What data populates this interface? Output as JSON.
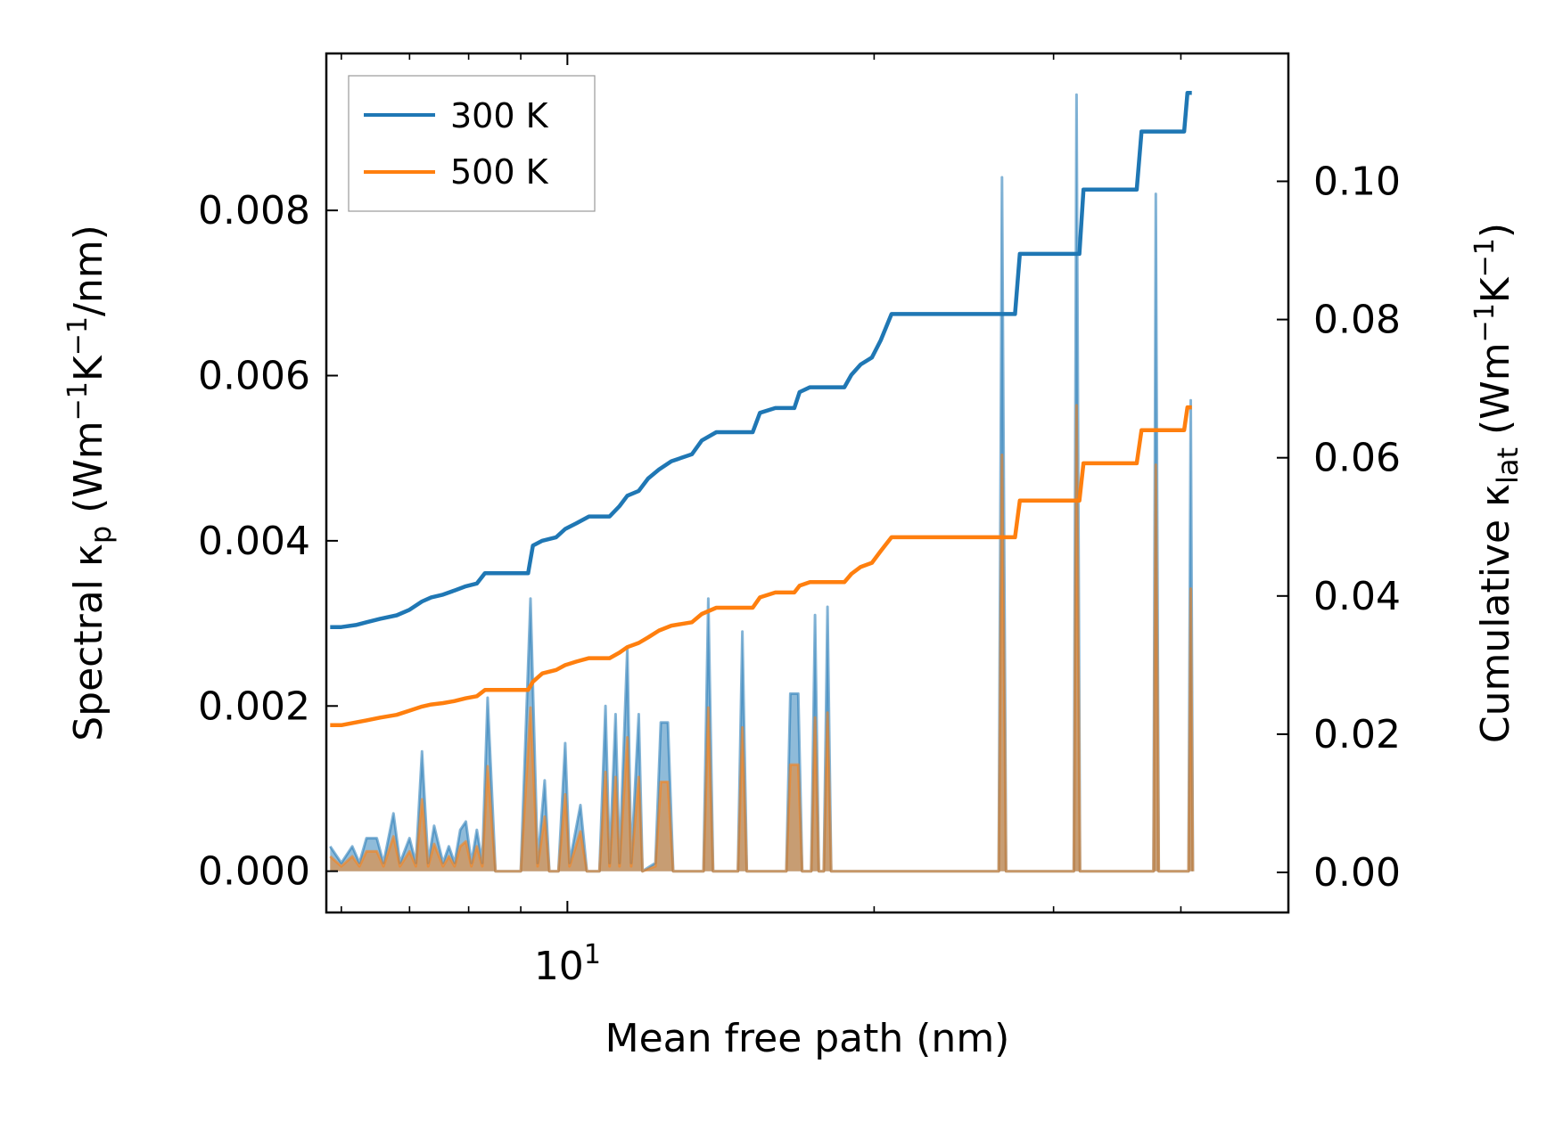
{
  "chart_data": {
    "type": "line",
    "title": "",
    "xlabel": "Mean free path (nm)",
    "xscale": "log",
    "xlim": [
      5.8,
      51.0
    ],
    "x_ticks": [
      {
        "value": 10,
        "base": "10",
        "exp": "1"
      }
    ],
    "x_minor_ticks": [
      6,
      7,
      8,
      9,
      20,
      30,
      40
    ],
    "left_axis": {
      "label_main": "Spectral κ",
      "label_sub": "p",
      "label_units_prefix": " (Wm",
      "label_units_exp1": "−1",
      "label_units_mid": "K",
      "label_units_exp2": "−1",
      "label_units_suffix": "/nm)",
      "ylim": [
        -0.0005,
        0.0099
      ],
      "ticks": [
        0.0,
        0.002,
        0.004,
        0.006,
        0.008
      ],
      "tick_labels": [
        "0.000",
        "0.002",
        "0.004",
        "0.006",
        "0.008"
      ]
    },
    "right_axis": {
      "label_main": "Cumulative κ",
      "label_sub": "lat",
      "label_units_prefix": " (Wm",
      "label_units_exp1": "−1",
      "label_units_mid": "K",
      "label_units_exp2": "−1",
      "label_units_suffix": ")",
      "ylim": [
        -0.0058,
        0.1185
      ],
      "ticks": [
        0.0,
        0.02,
        0.04,
        0.06,
        0.08,
        0.1
      ],
      "tick_labels": [
        "0.00",
        "0.02",
        "0.04",
        "0.06",
        "0.08",
        "0.10"
      ]
    },
    "legend": {
      "placement": "top-left",
      "entries": [
        "300 K",
        "500 K"
      ]
    },
    "colors": {
      "300 K": "#1f77b4",
      "500 K": "#ff7f0e",
      "fill_300": "#1f77b4",
      "fill_500": "#ff7f0e"
    },
    "cumulative_series": [
      {
        "name": "300 K",
        "axis": "right",
        "points": [
          [
            5.85,
            0.0355
          ],
          [
            6.0,
            0.0355
          ],
          [
            6.2,
            0.0358
          ],
          [
            6.35,
            0.0362
          ],
          [
            6.55,
            0.0367
          ],
          [
            6.8,
            0.0372
          ],
          [
            7.0,
            0.038
          ],
          [
            7.2,
            0.0392
          ],
          [
            7.35,
            0.0398
          ],
          [
            7.55,
            0.0402
          ],
          [
            7.75,
            0.0408
          ],
          [
            7.95,
            0.0414
          ],
          [
            8.15,
            0.0418
          ],
          [
            8.3,
            0.0433
          ],
          [
            9.15,
            0.0433
          ],
          [
            9.25,
            0.0473
          ],
          [
            9.45,
            0.048
          ],
          [
            9.75,
            0.0485
          ],
          [
            9.95,
            0.0497
          ],
          [
            10.2,
            0.0505
          ],
          [
            10.5,
            0.0515
          ],
          [
            11.0,
            0.0515
          ],
          [
            11.25,
            0.053
          ],
          [
            11.45,
            0.0545
          ],
          [
            11.75,
            0.0552
          ],
          [
            12.0,
            0.057
          ],
          [
            12.3,
            0.0583
          ],
          [
            12.65,
            0.0595
          ],
          [
            13.25,
            0.0605
          ],
          [
            13.55,
            0.0625
          ],
          [
            14.0,
            0.0637
          ],
          [
            15.2,
            0.0637
          ],
          [
            15.45,
            0.0665
          ],
          [
            16.0,
            0.0672
          ],
          [
            16.7,
            0.0672
          ],
          [
            16.9,
            0.0695
          ],
          [
            17.3,
            0.0702
          ],
          [
            18.7,
            0.0702
          ],
          [
            19.0,
            0.072
          ],
          [
            19.4,
            0.0735
          ],
          [
            19.9,
            0.0745
          ],
          [
            20.3,
            0.077
          ],
          [
            20.8,
            0.0808
          ],
          [
            27.5,
            0.0808
          ],
          [
            27.8,
            0.0895
          ],
          [
            31.8,
            0.0895
          ],
          [
            32.1,
            0.0988
          ],
          [
            36.2,
            0.0988
          ],
          [
            36.6,
            0.1072
          ],
          [
            40.3,
            0.1072
          ],
          [
            40.6,
            0.1128
          ],
          [
            41.0,
            0.1128
          ]
        ]
      },
      {
        "name": "500 K",
        "axis": "right",
        "points": [
          [
            5.85,
            0.0213
          ],
          [
            6.0,
            0.0213
          ],
          [
            6.2,
            0.0217
          ],
          [
            6.35,
            0.022
          ],
          [
            6.55,
            0.0224
          ],
          [
            6.8,
            0.0228
          ],
          [
            7.0,
            0.0234
          ],
          [
            7.2,
            0.024
          ],
          [
            7.35,
            0.0243
          ],
          [
            7.55,
            0.0245
          ],
          [
            7.75,
            0.0248
          ],
          [
            7.95,
            0.0252
          ],
          [
            8.15,
            0.0255
          ],
          [
            8.3,
            0.0264
          ],
          [
            9.15,
            0.0264
          ],
          [
            9.25,
            0.0276
          ],
          [
            9.45,
            0.0288
          ],
          [
            9.75,
            0.0293
          ],
          [
            9.95,
            0.03
          ],
          [
            10.2,
            0.0305
          ],
          [
            10.5,
            0.031
          ],
          [
            11.0,
            0.031
          ],
          [
            11.25,
            0.0318
          ],
          [
            11.45,
            0.0326
          ],
          [
            11.75,
            0.0332
          ],
          [
            12.0,
            0.034
          ],
          [
            12.3,
            0.035
          ],
          [
            12.65,
            0.0357
          ],
          [
            13.25,
            0.0362
          ],
          [
            13.55,
            0.0374
          ],
          [
            14.0,
            0.0383
          ],
          [
            15.2,
            0.0383
          ],
          [
            15.45,
            0.0398
          ],
          [
            16.0,
            0.0405
          ],
          [
            16.7,
            0.0405
          ],
          [
            16.9,
            0.0415
          ],
          [
            17.3,
            0.042
          ],
          [
            18.7,
            0.042
          ],
          [
            19.0,
            0.0432
          ],
          [
            19.4,
            0.0442
          ],
          [
            19.9,
            0.0448
          ],
          [
            20.3,
            0.0465
          ],
          [
            20.8,
            0.0485
          ],
          [
            27.5,
            0.0485
          ],
          [
            27.8,
            0.0538
          ],
          [
            31.8,
            0.0538
          ],
          [
            32.1,
            0.0592
          ],
          [
            36.2,
            0.0592
          ],
          [
            36.6,
            0.064
          ],
          [
            40.3,
            0.064
          ],
          [
            40.6,
            0.0673
          ],
          [
            41.0,
            0.0673
          ]
        ]
      }
    ],
    "spectral_series": [
      {
        "name": "300 K",
        "axis": "left",
        "points": [
          [
            5.85,
            0.0003
          ],
          [
            6.0,
            0.0001
          ],
          [
            6.15,
            0.0003
          ],
          [
            6.25,
            0.0001
          ],
          [
            6.35,
            0.0004
          ],
          [
            6.5,
            0.0004
          ],
          [
            6.6,
            0.0001
          ],
          [
            6.75,
            0.0007
          ],
          [
            6.85,
            0.0001
          ],
          [
            7.0,
            0.0004
          ],
          [
            7.1,
            0.0001
          ],
          [
            7.2,
            0.00145
          ],
          [
            7.3,
            0.0001
          ],
          [
            7.4,
            0.00055
          ],
          [
            7.55,
            0.0001
          ],
          [
            7.65,
            0.0003
          ],
          [
            7.75,
            0.0001
          ],
          [
            7.85,
            0.0005
          ],
          [
            7.95,
            0.0006
          ],
          [
            8.05,
            0.0001
          ],
          [
            8.15,
            0.0005
          ],
          [
            8.25,
            0.0001
          ],
          [
            8.35,
            0.0021
          ],
          [
            8.5,
            0.0
          ],
          [
            9.0,
            0.0
          ],
          [
            9.2,
            0.0033
          ],
          [
            9.35,
            0.0001
          ],
          [
            9.5,
            0.0011
          ],
          [
            9.6,
            0.0
          ],
          [
            9.8,
            0.0
          ],
          [
            9.95,
            0.00155
          ],
          [
            10.05,
            0.0001
          ],
          [
            10.3,
            0.0008
          ],
          [
            10.45,
            0.0
          ],
          [
            10.75,
            0.0
          ],
          [
            10.9,
            0.002
          ],
          [
            11.0,
            0.0001
          ],
          [
            11.15,
            0.0019
          ],
          [
            11.25,
            0.0001
          ],
          [
            11.45,
            0.0027
          ],
          [
            11.55,
            0.0001
          ],
          [
            11.75,
            0.0019
          ],
          [
            11.85,
            0.0
          ],
          [
            12.2,
            0.0001
          ],
          [
            12.35,
            0.0018
          ],
          [
            12.55,
            0.0018
          ],
          [
            12.7,
            0.0
          ],
          [
            13.6,
            0.0
          ],
          [
            13.75,
            0.0033
          ],
          [
            13.9,
            0.0
          ],
          [
            14.7,
            0.0
          ],
          [
            14.85,
            0.0029
          ],
          [
            15.0,
            0.0
          ],
          [
            16.4,
            0.0
          ],
          [
            16.55,
            0.00215
          ],
          [
            16.85,
            0.00215
          ],
          [
            17.0,
            0.0
          ],
          [
            17.35,
            0.0
          ],
          [
            17.5,
            0.0031
          ],
          [
            17.65,
            0.0
          ],
          [
            17.85,
            0.0
          ],
          [
            18.0,
            0.0032
          ],
          [
            18.15,
            0.0
          ],
          [
            26.5,
            0.0
          ],
          [
            26.7,
            0.0084
          ],
          [
            26.95,
            0.0
          ],
          [
            31.4,
            0.0
          ],
          [
            31.6,
            0.0094
          ],
          [
            31.85,
            0.0
          ],
          [
            37.6,
            0.0
          ],
          [
            37.8,
            0.0082
          ],
          [
            38.05,
            0.0
          ],
          [
            40.7,
            0.0
          ],
          [
            40.9,
            0.0057
          ],
          [
            41.1,
            0.0
          ]
        ]
      },
      {
        "name": "500 K",
        "axis": "left",
        "points": [
          [
            5.85,
            0.00018
          ],
          [
            6.0,
            6e-05
          ],
          [
            6.15,
            0.00018
          ],
          [
            6.25,
            6e-05
          ],
          [
            6.35,
            0.00024
          ],
          [
            6.5,
            0.00024
          ],
          [
            6.6,
            6e-05
          ],
          [
            6.75,
            0.00042
          ],
          [
            6.85,
            6e-05
          ],
          [
            7.0,
            0.00024
          ],
          [
            7.1,
            6e-05
          ],
          [
            7.2,
            0.00087
          ],
          [
            7.3,
            6e-05
          ],
          [
            7.4,
            0.00033
          ],
          [
            7.55,
            6e-05
          ],
          [
            7.65,
            0.00018
          ],
          [
            7.75,
            6e-05
          ],
          [
            7.85,
            0.0003
          ],
          [
            7.95,
            0.00036
          ],
          [
            8.05,
            6e-05
          ],
          [
            8.15,
            0.0003
          ],
          [
            8.25,
            6e-05
          ],
          [
            8.35,
            0.00127
          ],
          [
            8.5,
            0.0
          ],
          [
            9.0,
            0.0
          ],
          [
            9.2,
            0.00198
          ],
          [
            9.35,
            6e-05
          ],
          [
            9.5,
            0.00066
          ],
          [
            9.6,
            0.0
          ],
          [
            9.8,
            0.0
          ],
          [
            9.95,
            0.00093
          ],
          [
            10.05,
            6e-05
          ],
          [
            10.3,
            0.00048
          ],
          [
            10.45,
            0.0
          ],
          [
            10.75,
            0.0
          ],
          [
            10.9,
            0.0012
          ],
          [
            11.0,
            6e-05
          ],
          [
            11.15,
            0.00114
          ],
          [
            11.25,
            6e-05
          ],
          [
            11.45,
            0.00162
          ],
          [
            11.55,
            6e-05
          ],
          [
            11.75,
            0.00114
          ],
          [
            11.85,
            0.0
          ],
          [
            12.2,
            6e-05
          ],
          [
            12.35,
            0.00108
          ],
          [
            12.55,
            0.00108
          ],
          [
            12.7,
            0.0
          ],
          [
            13.6,
            0.0
          ],
          [
            13.75,
            0.00198
          ],
          [
            13.9,
            0.0
          ],
          [
            14.7,
            0.0
          ],
          [
            14.85,
            0.00174
          ],
          [
            15.0,
            0.0
          ],
          [
            16.4,
            0.0
          ],
          [
            16.55,
            0.00129
          ],
          [
            16.85,
            0.00129
          ],
          [
            17.0,
            0.0
          ],
          [
            17.35,
            0.0
          ],
          [
            17.5,
            0.00186
          ],
          [
            17.65,
            0.0
          ],
          [
            17.85,
            0.0
          ],
          [
            18.0,
            0.00192
          ],
          [
            18.15,
            0.0
          ],
          [
            26.5,
            0.0
          ],
          [
            26.7,
            0.00504
          ],
          [
            26.95,
            0.0
          ],
          [
            31.4,
            0.0
          ],
          [
            31.6,
            0.00564
          ],
          [
            31.85,
            0.0
          ],
          [
            37.6,
            0.0
          ],
          [
            37.8,
            0.00492
          ],
          [
            38.05,
            0.0
          ],
          [
            40.7,
            0.0
          ],
          [
            40.9,
            0.00342
          ],
          [
            41.1,
            0.0
          ]
        ]
      }
    ]
  }
}
